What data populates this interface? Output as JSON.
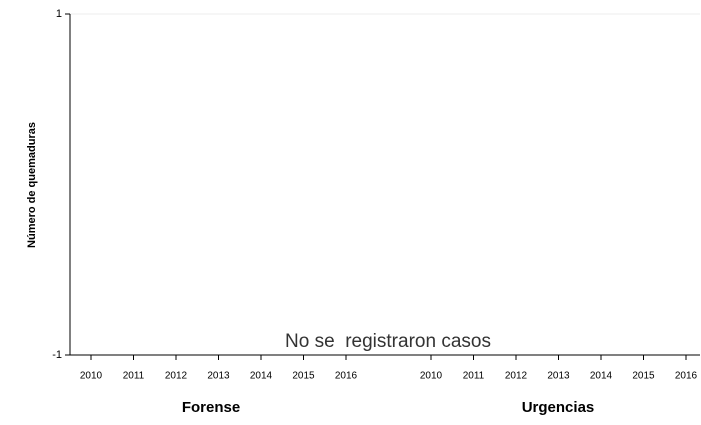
{
  "chart_data": {
    "type": "bar",
    "ylabel": "Número de quemaduras",
    "annotation": "No se  registraron casos",
    "ylim": [
      -1,
      1
    ],
    "yticks": [
      -1,
      1
    ],
    "grid": true,
    "panels": [
      {
        "title": "Forense",
        "categories": [
          "2010",
          "2011",
          "2012",
          "2013",
          "2014",
          "2015",
          "2016"
        ]
      },
      {
        "title": "Urgencias",
        "categories": [
          "2010",
          "2011",
          "2012",
          "2013",
          "2014",
          "2015",
          "2016"
        ]
      }
    ]
  }
}
